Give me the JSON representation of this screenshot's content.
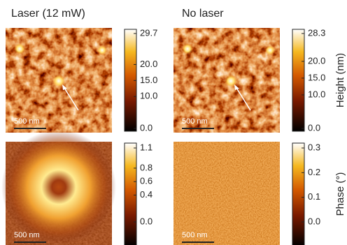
{
  "columns": [
    "Laser (12 mW)",
    "No laser"
  ],
  "rows": [
    {
      "label": "Height (nm)",
      "panels": [
        {
          "scale_bar": "500 nm",
          "colorbar_ticks": [
            {
              "value": 0,
              "label": "0.0"
            },
            {
              "value": 10,
              "label": "10.0"
            },
            {
              "value": 15,
              "label": "15.0"
            },
            {
              "value": 20,
              "label": "20.0"
            },
            29.7
          ]
        },
        {
          "scale_bar": "500 nm",
          "colorbar_ticks": [
            {
              "value": 0,
              "label": "0.0"
            },
            {
              "value": 10,
              "label": "10.0"
            },
            {
              "value": 15,
              "label": "15.0"
            },
            {
              "value": 20,
              "label": "20.0"
            },
            28.3
          ]
        }
      ]
    },
    {
      "label": "Phase (°)",
      "panels": [
        {
          "scale_bar": "500 nm",
          "colorbar_ticks": [
            {
              "value": 0,
              "label": "0.0"
            },
            0.4,
            0.6,
            0.8,
            1.1
          ]
        },
        {
          "scale_bar": "500 nm",
          "colorbar_ticks": [
            {
              "value": 0,
              "label": "0.0"
            },
            0.1,
            0.2,
            0.3
          ]
        }
      ]
    }
  ]
}
